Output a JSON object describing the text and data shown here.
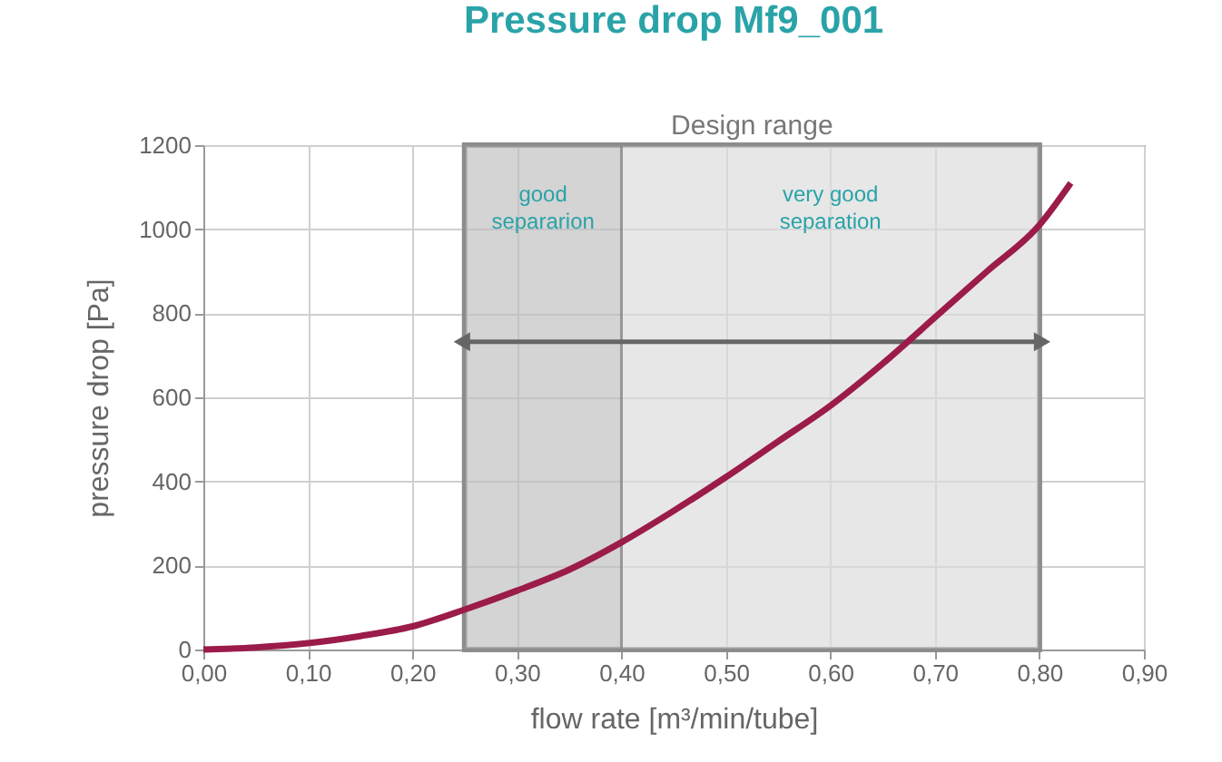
{
  "chart_data": {
    "type": "line",
    "title": "Pressure drop Mf9_001",
    "xlabel": "flow rate [m³/min/tube]",
    "ylabel": "pressure drop [Pa]",
    "x": [
      0,
      0.05,
      0.1,
      0.15,
      0.2,
      0.25,
      0.3,
      0.35,
      0.4,
      0.45,
      0.5,
      0.55,
      0.6,
      0.65,
      0.7,
      0.75,
      0.8,
      0.83
    ],
    "series": [
      {
        "color": "#9b1b4a",
        "values": [
          0,
          5,
          15,
          32,
          55,
          95,
          140,
          190,
          255,
          330,
          410,
          495,
          580,
          680,
          790,
          900,
          1010,
          1110
        ]
      }
    ],
    "xlim": [
      0,
      0.9
    ],
    "xticks": [
      {
        "value": 0,
        "label": "0,00"
      },
      {
        "value": 0.1,
        "label": "0,10"
      },
      {
        "value": 0.2,
        "label": "0,20"
      },
      {
        "value": 0.3,
        "label": "0,30"
      },
      {
        "value": 0.4,
        "label": "0,40"
      },
      {
        "value": 0.5,
        "label": "0,50"
      },
      {
        "value": 0.6,
        "label": "0,60"
      },
      {
        "value": 0.7,
        "label": "0,70"
      },
      {
        "value": 0.8,
        "label": "0,80"
      },
      {
        "value": 0.9,
        "label": "0,90"
      }
    ],
    "ylim": [
      0,
      1200
    ],
    "yticks": [
      0,
      200,
      400,
      600,
      800,
      1000,
      1200
    ],
    "bands": [
      {
        "axis": "x",
        "from": 0.25,
        "to": 0.8,
        "label": "Design range",
        "color": "#8c8c8c"
      },
      {
        "axis": "x",
        "from": 0.25,
        "to": 0.4,
        "label": "good separarion",
        "color": "#c4c4c4"
      },
      {
        "axis": "x",
        "from": 0.4,
        "to": 0.8,
        "label": "very good separation",
        "color": "#e4e4e4"
      }
    ],
    "grid": true,
    "marker": "none",
    "line_style": "solid"
  }
}
